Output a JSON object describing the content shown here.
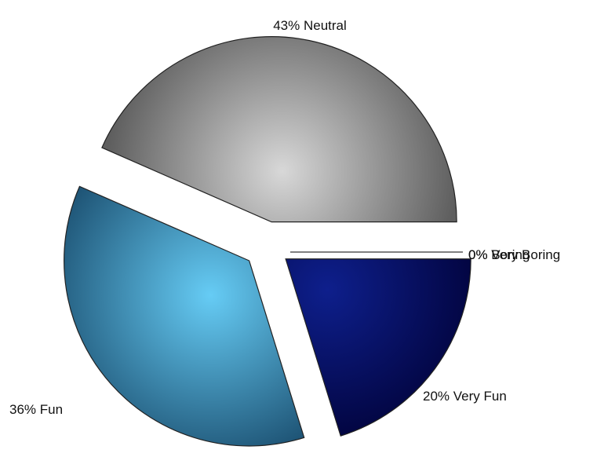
{
  "chart_data": {
    "type": "pie",
    "exploded": true,
    "slices": [
      {
        "label": "Neutral",
        "value": 43,
        "display": "43% Neutral",
        "color_light": "#d8d8d8",
        "color_dark": "#5e5e5e"
      },
      {
        "label": "Fun",
        "value": 36,
        "display": "36% Fun",
        "color_light": "#66ccf5",
        "color_dark": "#1b4f70"
      },
      {
        "label": "Very Fun",
        "value": 20,
        "display": "20% Very Fun",
        "color_light": "#0e1f8c",
        "color_dark": "#000033"
      },
      {
        "label": "Boring",
        "value": 0,
        "display": "0% Boring",
        "color_light": "#000000",
        "color_dark": "#000000"
      },
      {
        "label": "Very Boring",
        "value": 0,
        "display": "0% Very Boring",
        "color_light": "#000000",
        "color_dark": "#000000"
      }
    ],
    "legend": "none"
  }
}
